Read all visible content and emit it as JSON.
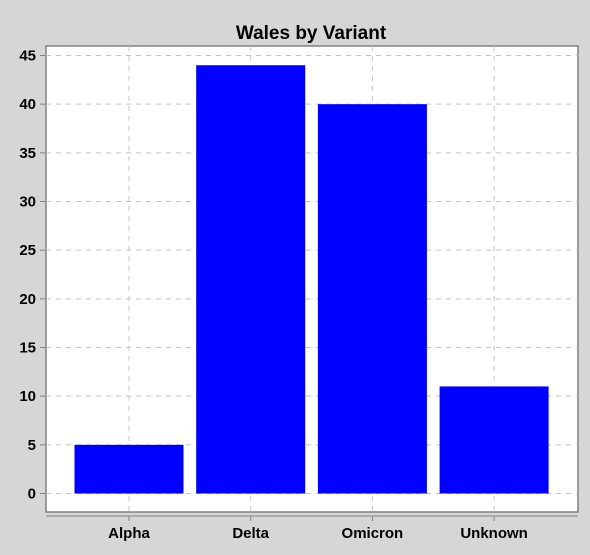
{
  "chart_data": {
    "type": "bar",
    "title": "Wales by Variant",
    "xlabel": "",
    "ylabel": "",
    "categories": [
      "Alpha",
      "Delta",
      "Omicron",
      "Unknown"
    ],
    "series": [
      {
        "values": [
          5,
          44,
          40,
          11
        ]
      }
    ],
    "ylim": [
      0,
      46
    ],
    "yticks": [
      0,
      5,
      10,
      15,
      20,
      25,
      30,
      35,
      40,
      45
    ],
    "ytick_labels": [
      "0",
      "5",
      "10",
      "15",
      "20",
      "25",
      "30",
      "35",
      "40",
      "45"
    ],
    "grid": true,
    "legend": "none"
  },
  "colors": {
    "background": "#d6d6d6",
    "plot_background": "#ffffff",
    "bar": "#0000ff",
    "grid": "#c4c4c4",
    "axis": "#808080"
  }
}
